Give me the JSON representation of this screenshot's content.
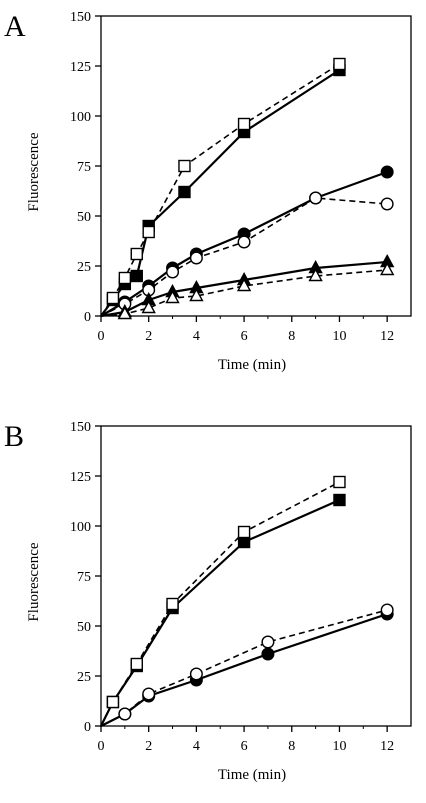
{
  "chart_data": [
    {
      "panel": "A",
      "type": "line",
      "xlabel": "Time (min)",
      "ylabel": "Fluorescence",
      "xlim": [
        0,
        13
      ],
      "ylim": [
        0,
        150
      ],
      "xticks": [
        0,
        2,
        4,
        6,
        8,
        10,
        12
      ],
      "yticks": [
        0,
        25,
        50,
        75,
        100,
        125,
        150
      ],
      "grid": false,
      "series": [
        {
          "marker": "square",
          "fill": "filled",
          "line": "solid",
          "x": [
            0,
            0.5,
            1,
            1.5,
            2,
            3.5,
            6,
            10
          ],
          "y": [
            0,
            8,
            16,
            20,
            45,
            62,
            92,
            123
          ]
        },
        {
          "marker": "square",
          "fill": "open",
          "line": "dashed",
          "x": [
            0,
            0.5,
            1,
            1.5,
            2,
            3.5,
            6,
            10
          ],
          "y": [
            0,
            9,
            19,
            31,
            42,
            75,
            96,
            126
          ]
        },
        {
          "marker": "circle",
          "fill": "filled",
          "line": "solid",
          "x": [
            0,
            1,
            2,
            3,
            4,
            6,
            9,
            12
          ],
          "y": [
            0,
            7,
            15,
            24,
            31,
            41,
            59,
            72
          ]
        },
        {
          "marker": "circle",
          "fill": "open",
          "line": "dashed",
          "x": [
            0,
            1,
            2,
            3,
            4,
            6,
            9,
            12
          ],
          "y": [
            0,
            6,
            13,
            22,
            29,
            37,
            59,
            56
          ]
        },
        {
          "marker": "triangle",
          "fill": "filled",
          "line": "solid",
          "x": [
            0,
            1,
            2,
            3,
            4,
            6,
            9,
            12
          ],
          "y": [
            0,
            2,
            8,
            12,
            14,
            18,
            24,
            27
          ]
        },
        {
          "marker": "triangle",
          "fill": "open",
          "line": "dashed",
          "x": [
            0,
            1,
            2,
            3,
            4,
            6,
            9,
            12
          ],
          "y": [
            0,
            1,
            4,
            9,
            10,
            15,
            20,
            23
          ]
        }
      ]
    },
    {
      "panel": "B",
      "type": "line",
      "xlabel": "Time (min)",
      "ylabel": "Fluorescence",
      "xlim": [
        0,
        13
      ],
      "ylim": [
        0,
        150
      ],
      "xticks": [
        0,
        2,
        4,
        6,
        8,
        10,
        12
      ],
      "yticks": [
        0,
        25,
        50,
        75,
        100,
        125,
        150
      ],
      "grid": false,
      "series": [
        {
          "marker": "square",
          "fill": "filled",
          "line": "solid",
          "x": [
            0,
            0.5,
            1.5,
            3,
            6,
            10
          ],
          "y": [
            0,
            12,
            30,
            59,
            92,
            113
          ]
        },
        {
          "marker": "square",
          "fill": "open",
          "line": "dashed",
          "x": [
            0,
            0.5,
            1.5,
            3,
            6,
            10
          ],
          "y": [
            0,
            12,
            31,
            61,
            97,
            122
          ]
        },
        {
          "marker": "circle",
          "fill": "filled",
          "line": "solid",
          "x": [
            0,
            1,
            2,
            4,
            7,
            12
          ],
          "y": [
            0,
            6,
            15,
            23,
            36,
            56
          ]
        },
        {
          "marker": "circle",
          "fill": "open",
          "line": "dashed",
          "x": [
            0,
            1,
            2,
            4,
            7,
            12
          ],
          "y": [
            0,
            6,
            16,
            26,
            42,
            58
          ]
        }
      ]
    }
  ]
}
